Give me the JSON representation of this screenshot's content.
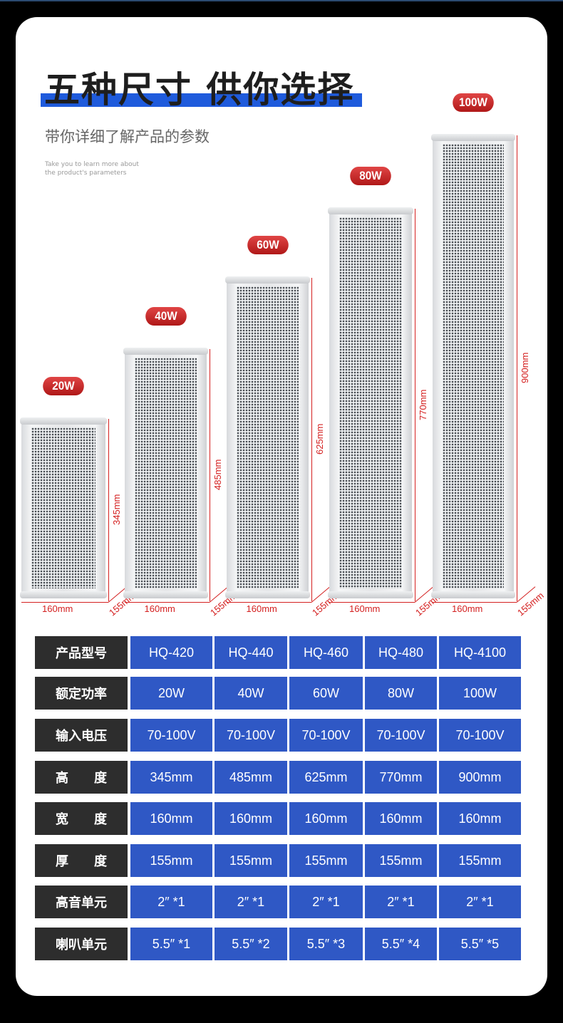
{
  "header": {
    "title": "五种尺寸 供你选择",
    "subtitle": "带你详细了解产品的参数",
    "english_line1": "Take you to learn more about",
    "english_line2": "the product's parameters"
  },
  "colors": {
    "accent_blue": "#1f5bdc",
    "cell_blue": "#2f58c5",
    "label_dark": "#2d2d2d",
    "dimension_red": "#d42020",
    "badge_red": "#c82222"
  },
  "speakers": [
    {
      "power": "20W",
      "height": "345mm",
      "width": "160mm",
      "depth": "155mm"
    },
    {
      "power": "40W",
      "height": "485mm",
      "width": "160mm",
      "depth": "155mm"
    },
    {
      "power": "60W",
      "height": "625mm",
      "width": "160mm",
      "depth": "155mm"
    },
    {
      "power": "80W",
      "height": "770mm",
      "width": "160mm",
      "depth": "155mm"
    },
    {
      "power": "100W",
      "height": "900mm",
      "width": "160mm",
      "depth": "155mm"
    }
  ],
  "table": {
    "rows": [
      {
        "label": "产品型号",
        "values": [
          "HQ-420",
          "HQ-440",
          "HQ-460",
          "HQ-480",
          "HQ-4100"
        ]
      },
      {
        "label": "额定功率",
        "values": [
          "20W",
          "40W",
          "60W",
          "80W",
          "100W"
        ]
      },
      {
        "label": "输入电压",
        "values": [
          "70-100V",
          "70-100V",
          "70-100V",
          "70-100V",
          "70-100V"
        ]
      },
      {
        "label": "高　　度",
        "values": [
          "345mm",
          "485mm",
          "625mm",
          "770mm",
          "900mm"
        ]
      },
      {
        "label": "宽　　度",
        "values": [
          "160mm",
          "160mm",
          "160mm",
          "160mm",
          "160mm"
        ]
      },
      {
        "label": "厚　　度",
        "values": [
          "155mm",
          "155mm",
          "155mm",
          "155mm",
          "155mm"
        ]
      },
      {
        "label": "高音单元",
        "values": [
          "2″ *1",
          "2″ *1",
          "2″ *1",
          "2″ *1",
          "2″ *1"
        ]
      },
      {
        "label": "喇叭单元",
        "values": [
          "5.5″ *1",
          "5.5″ *2",
          "5.5″ *3",
          "5.5″ *4",
          "5.5″ *5"
        ]
      }
    ]
  }
}
